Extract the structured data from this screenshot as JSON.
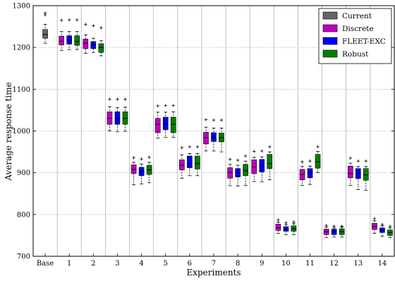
{
  "chart_data": {
    "type": "boxplot",
    "xlabel": "Experiments",
    "ylabel": "Average response time",
    "ylim": [
      700,
      1300
    ],
    "yticks": [
      700,
      800,
      900,
      1000,
      1100,
      1200,
      1300
    ],
    "grid": {
      "y": true,
      "x_separators": true
    },
    "legend_position": "top-right",
    "categories": [
      "Base",
      "1",
      "2",
      "3",
      "4",
      "5",
      "6",
      "7",
      "8",
      "9",
      "10",
      "11",
      "12",
      "13",
      "14"
    ],
    "series": [
      {
        "name": "Current",
        "color": "#666666",
        "boxes": [
          {
            "category": "Base",
            "whislo": 1210,
            "q1": 1222,
            "med": 1231,
            "q3": 1243,
            "whishi": 1255,
            "fliers": [
              1278,
              1282
            ]
          }
        ]
      },
      {
        "name": "Discrete",
        "color": "#bf00bf",
        "boxes": [
          {
            "category": "1",
            "whislo": 1193,
            "q1": 1206,
            "med": 1215,
            "q3": 1227,
            "whishi": 1238,
            "fliers": [
              1265
            ]
          },
          {
            "category": "2",
            "whislo": 1186,
            "q1": 1197,
            "med": 1210,
            "q3": 1220,
            "whishi": 1230,
            "fliers": [
              1255
            ]
          },
          {
            "category": "3",
            "whislo": 1000,
            "q1": 1016,
            "med": 1030,
            "q3": 1046,
            "whishi": 1058,
            "fliers": [
              1076
            ]
          },
          {
            "category": "4",
            "whislo": 871,
            "q1": 898,
            "med": 908,
            "q3": 919,
            "whishi": 925,
            "fliers": [
              936
            ]
          },
          {
            "category": "5",
            "whislo": 983,
            "q1": 996,
            "med": 1016,
            "q3": 1030,
            "whishi": 1045,
            "fliers": [
              1060
            ]
          },
          {
            "category": "6",
            "whislo": 887,
            "q1": 907,
            "med": 918,
            "q3": 931,
            "whishi": 943,
            "fliers": [
              960
            ]
          },
          {
            "category": "7",
            "whislo": 952,
            "q1": 969,
            "med": 984,
            "q3": 997,
            "whishi": 1009,
            "fliers": [
              1027
            ]
          },
          {
            "category": "8",
            "whislo": 869,
            "q1": 887,
            "med": 901,
            "q3": 912,
            "whishi": 920,
            "fliers": [
              932
            ]
          },
          {
            "category": "9",
            "whislo": 879,
            "q1": 898,
            "med": 914,
            "q3": 931,
            "whishi": 937,
            "fliers": [
              951
            ]
          },
          {
            "category": "10",
            "whislo": 755,
            "q1": 762,
            "med": 768,
            "q3": 777,
            "whishi": 782,
            "fliers": [
              787
            ]
          },
          {
            "category": "11",
            "whislo": 870,
            "q1": 883,
            "med": 896,
            "q3": 908,
            "whishi": 915,
            "fliers": [
              926
            ]
          },
          {
            "category": "12",
            "whislo": 745,
            "q1": 752,
            "med": 759,
            "q3": 765,
            "whishi": 770,
            "fliers": [
              774
            ]
          },
          {
            "category": "13",
            "whislo": 870,
            "q1": 888,
            "med": 898,
            "q3": 916,
            "whishi": 923,
            "fliers": [
              935
            ]
          },
          {
            "category": "14",
            "whislo": 755,
            "q1": 764,
            "med": 771,
            "q3": 779,
            "whishi": 785,
            "fliers": [
              790
            ]
          }
        ]
      },
      {
        "name": "FLEET-EXC",
        "color": "#0000ff",
        "boxes": [
          {
            "category": "1",
            "whislo": 1195,
            "q1": 1208,
            "med": 1217,
            "q3": 1228,
            "whishi": 1238,
            "fliers": [
              1266
            ]
          },
          {
            "category": "2",
            "whislo": 1188,
            "q1": 1197,
            "med": 1206,
            "q3": 1214,
            "whishi": 1222,
            "fliers": [
              1252
            ]
          },
          {
            "category": "3",
            "whislo": 998,
            "q1": 1016,
            "med": 1030,
            "q3": 1046,
            "whishi": 1056,
            "fliers": [
              1076
            ]
          },
          {
            "category": "4",
            "whislo": 873,
            "q1": 893,
            "med": 903,
            "q3": 913,
            "whishi": 921,
            "fliers": [
              933
            ]
          },
          {
            "category": "5",
            "whislo": 985,
            "q1": 1003,
            "med": 1017,
            "q3": 1033,
            "whishi": 1045,
            "fliers": [
              1061
            ]
          },
          {
            "category": "6",
            "whislo": 893,
            "q1": 912,
            "med": 922,
            "q3": 940,
            "whishi": 946,
            "fliers": [
              962
            ]
          },
          {
            "category": "7",
            "whislo": 952,
            "q1": 975,
            "med": 985,
            "q3": 996,
            "whishi": 1007,
            "fliers": [
              1026
            ]
          },
          {
            "category": "8",
            "whislo": 868,
            "q1": 890,
            "med": 900,
            "q3": 910,
            "whishi": 918,
            "fliers": [
              930
            ]
          },
          {
            "category": "9",
            "whislo": 878,
            "q1": 902,
            "med": 916,
            "q3": 932,
            "whishi": 938,
            "fliers": [
              952
            ]
          },
          {
            "category": "10",
            "whislo": 752,
            "q1": 760,
            "med": 765,
            "q3": 771,
            "whishi": 776,
            "fliers": [
              780
            ]
          },
          {
            "category": "11",
            "whislo": 872,
            "q1": 888,
            "med": 900,
            "q3": 910,
            "whishi": 916,
            "fliers": [
              928
            ]
          },
          {
            "category": "12",
            "whislo": 746,
            "q1": 752,
            "med": 759,
            "q3": 765,
            "whishi": 768,
            "fliers": [
              772
            ]
          },
          {
            "category": "13",
            "whislo": 860,
            "q1": 886,
            "med": 898,
            "q3": 910,
            "whishi": 915,
            "fliers": [
              928
            ]
          },
          {
            "category": "14",
            "whislo": 748,
            "q1": 757,
            "med": 762,
            "q3": 768,
            "whishi": 773,
            "fliers": [
              776
            ]
          }
        ]
      },
      {
        "name": "Robust",
        "color": "#007f00",
        "boxes": [
          {
            "category": "1",
            "whislo": 1195,
            "q1": 1205,
            "med": 1214,
            "q3": 1228,
            "whishi": 1238,
            "fliers": [
              1266
            ]
          },
          {
            "category": "2",
            "whislo": 1180,
            "q1": 1188,
            "med": 1200,
            "q3": 1209,
            "whishi": 1216,
            "fliers": [
              1247
            ]
          },
          {
            "category": "3",
            "whislo": 999,
            "q1": 1016,
            "med": 1030,
            "q3": 1046,
            "whishi": 1057,
            "fliers": [
              1076
            ]
          },
          {
            "category": "4",
            "whislo": 876,
            "q1": 896,
            "med": 907,
            "q3": 918,
            "whishi": 925,
            "fliers": [
              937
            ]
          },
          {
            "category": "5",
            "whislo": 985,
            "q1": 996,
            "med": 1016,
            "q3": 1033,
            "whishi": 1046,
            "fliers": [
              1061
            ]
          },
          {
            "category": "6",
            "whislo": 893,
            "q1": 909,
            "med": 922,
            "q3": 940,
            "whishi": 946,
            "fliers": [
              962
            ]
          },
          {
            "category": "7",
            "whislo": 950,
            "q1": 974,
            "med": 984,
            "q3": 995,
            "whishi": 1007,
            "fliers": [
              1026
            ]
          },
          {
            "category": "8",
            "whislo": 870,
            "q1": 893,
            "med": 905,
            "q3": 920,
            "whishi": 928,
            "fliers": [
              940
            ]
          },
          {
            "category": "9",
            "whislo": 883,
            "q1": 910,
            "med": 922,
            "q3": 944,
            "whishi": 950,
            "fliers": [
              962
            ]
          },
          {
            "category": "10",
            "whislo": 752,
            "q1": 760,
            "med": 766,
            "q3": 773,
            "whishi": 778,
            "fliers": [
              782
            ]
          },
          {
            "category": "11",
            "whislo": 900,
            "q1": 911,
            "med": 926,
            "q3": 944,
            "whishi": 951,
            "fliers": [
              962
            ]
          },
          {
            "category": "12",
            "whislo": 746,
            "q1": 752,
            "med": 759,
            "q3": 766,
            "whishi": 770,
            "fliers": [
              772
            ]
          },
          {
            "category": "13",
            "whislo": 858,
            "q1": 882,
            "med": 895,
            "q3": 910,
            "whishi": 915,
            "fliers": [
              928
            ]
          },
          {
            "category": "14",
            "whislo": 745,
            "q1": 750,
            "med": 757,
            "q3": 763,
            "whishi": 768,
            "fliers": [
              772
            ]
          }
        ]
      }
    ]
  }
}
